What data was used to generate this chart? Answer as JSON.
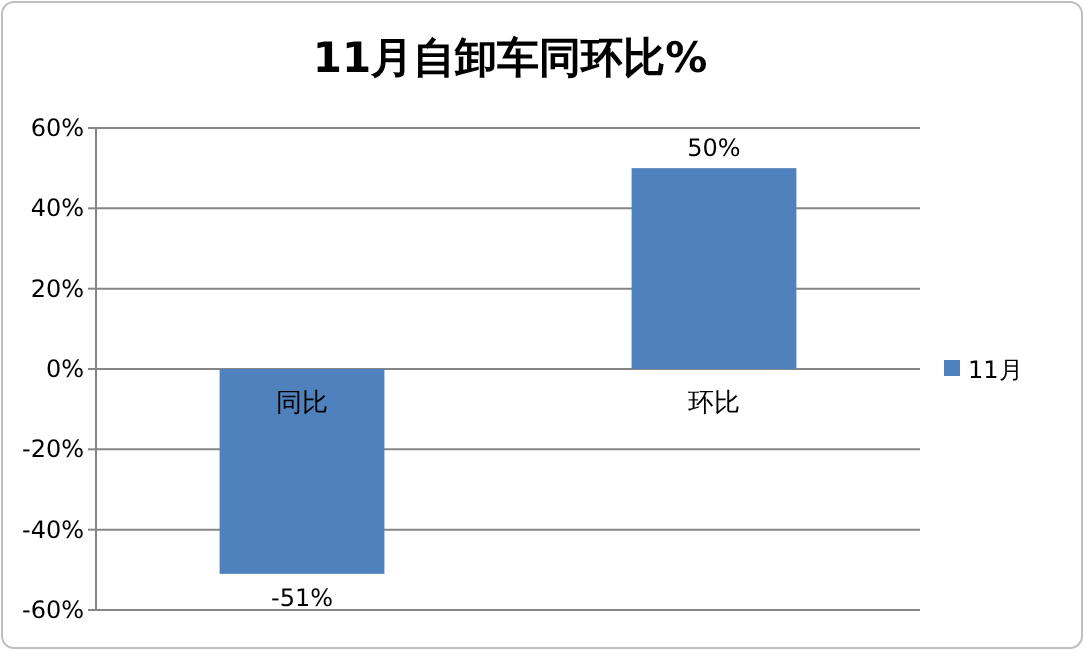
{
  "chart_data": {
    "type": "bar",
    "title": "11月自卸车同环比%",
    "categories": [
      "同比",
      "环比"
    ],
    "series": [
      {
        "name": "11月",
        "color": "#4f81bd",
        "values": [
          -51,
          50
        ],
        "value_labels": [
          "-51%",
          "50%"
        ]
      }
    ],
    "ylim": [
      -60,
      60
    ],
    "yticks": [
      {
        "value": -60,
        "label": "-60%"
      },
      {
        "value": -40,
        "label": "-40%"
      },
      {
        "value": -20,
        "label": "-20%"
      },
      {
        "value": 0,
        "label": "0%"
      },
      {
        "value": 20,
        "label": "20%"
      },
      {
        "value": 40,
        "label": "40%"
      },
      {
        "value": 60,
        "label": "60%"
      }
    ],
    "grid": "y",
    "legend": "right"
  }
}
